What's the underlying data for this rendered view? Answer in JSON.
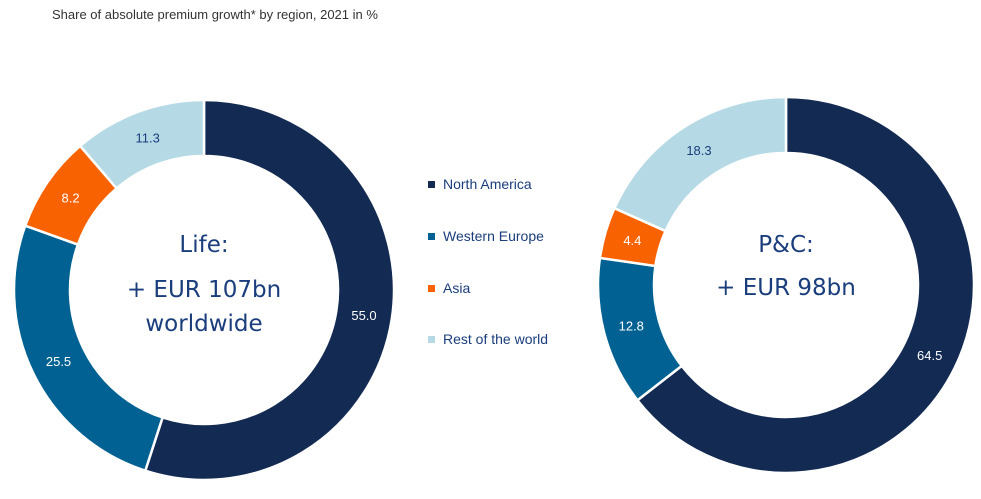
{
  "title": "Share of absolute premium growth* by region, 2021 in %",
  "colors": {
    "north_america": "#132a52",
    "western_europe": "#006192",
    "asia": "#f86200",
    "rest_of_world": "#b5dae6"
  },
  "chart_data": [
    {
      "type": "pie",
      "variant": "donut",
      "center_lines": [
        "Life:",
        "+ EUR 107bn",
        "worldwide"
      ],
      "categories": [
        "North America",
        "Western Europe",
        "Asia",
        "Rest of the world"
      ],
      "values": [
        55.0,
        25.5,
        8.2,
        11.3
      ],
      "labels": [
        "55.0",
        "25.5",
        "8.2",
        "11.3"
      ]
    },
    {
      "type": "pie",
      "variant": "donut",
      "center_lines": [
        "P&C:",
        "+ EUR 98bn"
      ],
      "categories": [
        "North America",
        "Western Europe",
        "Asia",
        "Rest of the world"
      ],
      "values": [
        64.5,
        12.8,
        4.4,
        18.3
      ],
      "labels": [
        "64.5",
        "12.8",
        "4.4",
        "18.3"
      ]
    }
  ],
  "legend": {
    "placement": "center",
    "items": [
      "North America",
      "Western Europe",
      "Asia",
      "Rest of the world"
    ]
  }
}
